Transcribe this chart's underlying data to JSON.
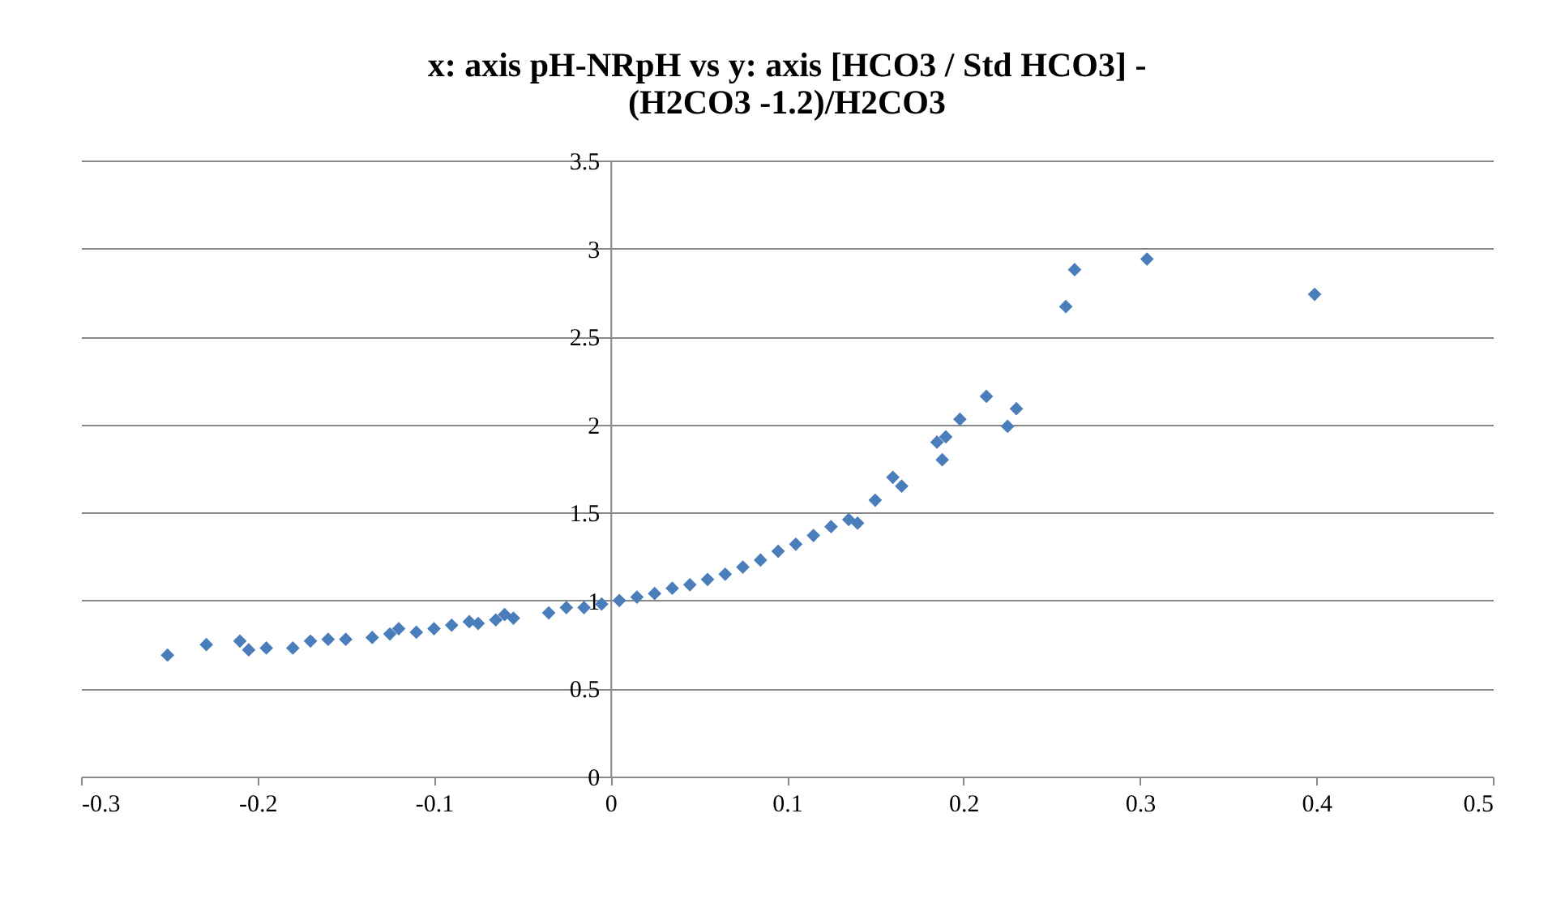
{
  "chart_data": {
    "type": "scatter",
    "title": "x: axis pH-NRpH  vs   y: axis [HCO3 / Std HCO3] -\n(H2CO3 -1.2)/H2CO3",
    "x": [
      -0.251,
      -0.229,
      -0.21,
      -0.205,
      -0.195,
      -0.18,
      -0.17,
      -0.16,
      -0.15,
      -0.135,
      -0.125,
      -0.12,
      -0.11,
      -0.1,
      -0.09,
      -0.08,
      -0.075,
      -0.065,
      -0.06,
      -0.055,
      -0.035,
      -0.025,
      -0.015,
      -0.005,
      0.005,
      0.015,
      0.025,
      0.035,
      0.045,
      0.055,
      0.065,
      0.075,
      0.085,
      0.095,
      0.105,
      0.115,
      0.125,
      0.135,
      0.14,
      0.15,
      0.16,
      0.165,
      0.185,
      0.188,
      0.19,
      0.198,
      0.213,
      0.225,
      0.23,
      0.258,
      0.263,
      0.304,
      0.399
    ],
    "series": [
      {
        "color": "#4a7ebb",
        "values": [
          0.69,
          0.75,
          0.77,
          0.72,
          0.73,
          0.73,
          0.77,
          0.78,
          0.78,
          0.79,
          0.81,
          0.84,
          0.82,
          0.84,
          0.86,
          0.88,
          0.87,
          0.89,
          0.92,
          0.9,
          0.93,
          0.96,
          0.96,
          0.98,
          1.0,
          1.02,
          1.04,
          1.07,
          1.09,
          1.12,
          1.15,
          1.19,
          1.23,
          1.28,
          1.32,
          1.37,
          1.42,
          1.46,
          1.44,
          1.57,
          1.7,
          1.65,
          1.9,
          1.8,
          1.93,
          2.03,
          2.16,
          1.99,
          2.09,
          2.67,
          2.88,
          2.94,
          2.74
        ]
      }
    ],
    "xlim": [
      -0.3,
      0.5
    ],
    "xticks": [
      -0.3,
      -0.2,
      -0.1,
      0,
      0.1,
      0.2,
      0.3,
      0.4,
      0.5
    ],
    "ylim": [
      0,
      3.5
    ],
    "yticks": [
      0,
      0.5,
      1,
      1.5,
      2,
      2.5,
      3,
      3.5
    ],
    "grid": "y",
    "marker": "diamond"
  }
}
